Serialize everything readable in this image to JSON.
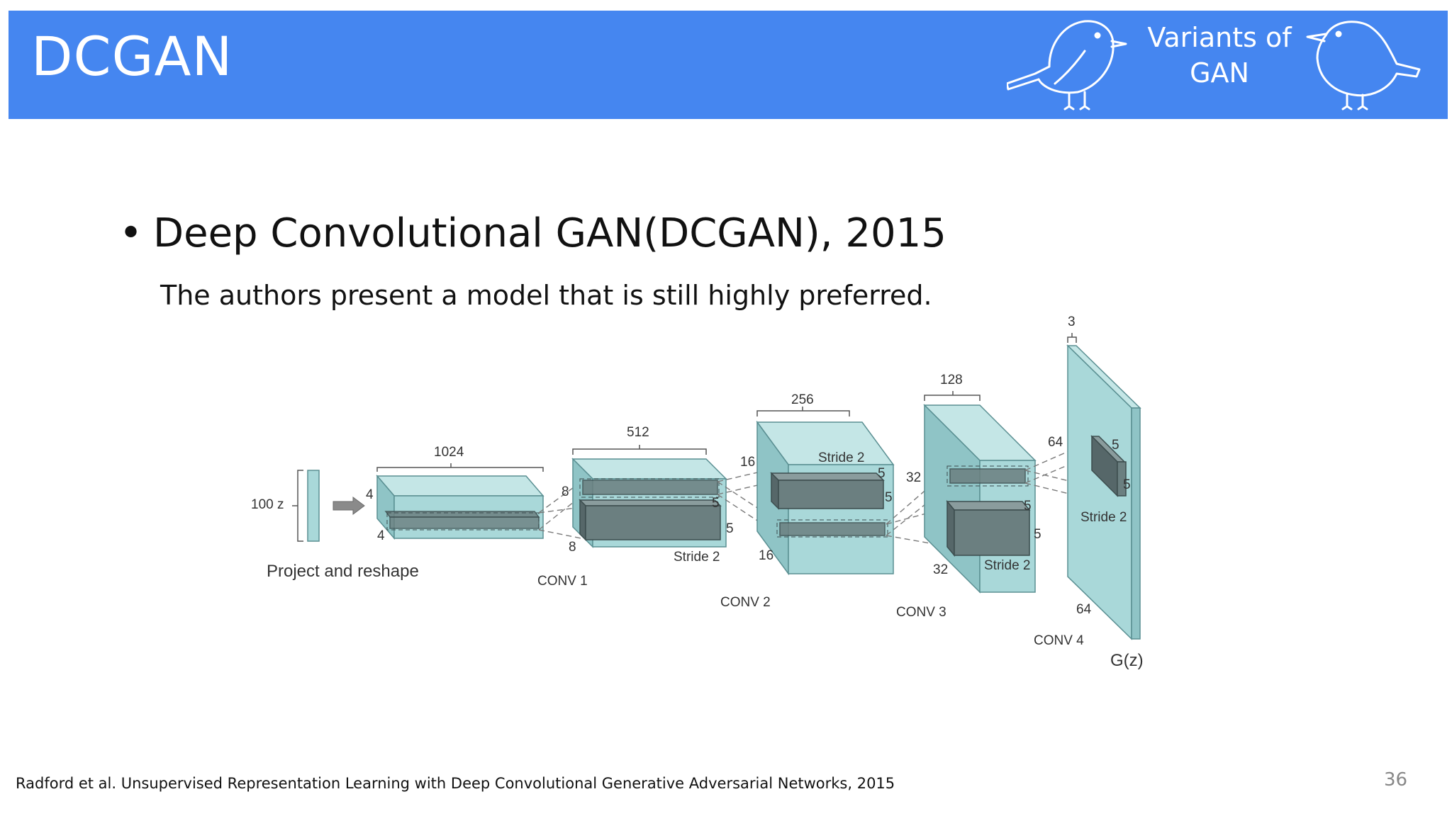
{
  "header": {
    "title": "DCGAN",
    "section_line1": "Variants of",
    "section_line2": "GAN"
  },
  "content": {
    "bullet": "Deep Convolutional GAN(DCGAN), 2015",
    "subtitle": "The authors present a model that is still highly preferred."
  },
  "diagram": {
    "input_label": "100 z",
    "project_label": "Project and reshape",
    "project": {
      "width": "1024",
      "h1": "4",
      "h2": "4"
    },
    "conv1": {
      "label": "CONV 1",
      "width": "512",
      "h1": "8",
      "h2": "8",
      "k1": "5",
      "k2": "5",
      "stride": "Stride 2"
    },
    "conv2": {
      "label": "CONV 2",
      "width": "256",
      "h1": "16",
      "h2": "16",
      "k1": "5",
      "k2": "5",
      "stride": "Stride 2"
    },
    "conv3": {
      "label": "CONV 3",
      "width": "128",
      "h1": "32",
      "h2": "32",
      "k1": "5",
      "k2": "5",
      "stride": "Stride 2"
    },
    "conv4": {
      "label": "CONV 4",
      "width": "3",
      "h1": "64",
      "h2": "64",
      "k1": "5",
      "k2": "5",
      "stride": "Stride 2"
    },
    "output_label": "G(z)"
  },
  "footer": {
    "reference": "Radford et al. Unsupervised Representation Learning with Deep Convolutional Generative Adversarial Networks, 2015",
    "page_number": "36"
  },
  "colors": {
    "header_bg": "#4586f0",
    "layer_fill": "#a9d8d9",
    "layer_stroke": "#5a8f92",
    "kernel_fill": "#6b7f80"
  }
}
